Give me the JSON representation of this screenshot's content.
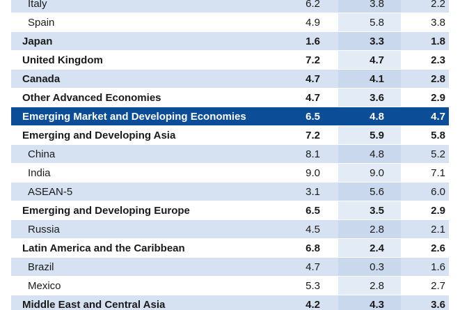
{
  "table": {
    "rows": [
      {
        "label": "Italy",
        "v1": "6.2",
        "v2": "3.8",
        "v3": "2.2",
        "style": "indent"
      },
      {
        "label": "Spain",
        "v1": "4.9",
        "v2": "5.8",
        "v3": "3.8",
        "style": "indent"
      },
      {
        "label": "Japan",
        "v1": "1.6",
        "v2": "3.3",
        "v3": "1.8",
        "style": "normal"
      },
      {
        "label": "United Kingdom",
        "v1": "7.2",
        "v2": "4.7",
        "v3": "2.3",
        "style": "normal"
      },
      {
        "label": "Canada",
        "v1": "4.7",
        "v2": "4.1",
        "v3": "2.8",
        "style": "normal"
      },
      {
        "label": "Other Advanced Economies",
        "v1": "4.7",
        "v2": "3.6",
        "v3": "2.9",
        "style": "normal"
      },
      {
        "label": "Emerging Market and Developing Economies",
        "v1": "6.5",
        "v2": "4.8",
        "v3": "4.7",
        "style": "highlight"
      },
      {
        "label": "Emerging and Developing Asia",
        "v1": "7.2",
        "v2": "5.9",
        "v3": "5.8",
        "style": "normal"
      },
      {
        "label": "China",
        "v1": "8.1",
        "v2": "4.8",
        "v3": "5.2",
        "style": "indent"
      },
      {
        "label": "India",
        "v1": "9.0",
        "v2": "9.0",
        "v3": "7.1",
        "style": "indent"
      },
      {
        "label": "ASEAN-5",
        "v1": "3.1",
        "v2": "5.6",
        "v3": "6.0",
        "style": "indent"
      },
      {
        "label": "Emerging and Developing Europe",
        "v1": "6.5",
        "v2": "3.5",
        "v3": "2.9",
        "style": "normal"
      },
      {
        "label": "Russia",
        "v1": "4.5",
        "v2": "2.8",
        "v3": "2.1",
        "style": "indent"
      },
      {
        "label": "Latin America and the Caribbean",
        "v1": "6.8",
        "v2": "2.4",
        "v3": "2.6",
        "style": "normal"
      },
      {
        "label": "Brazil",
        "v1": "4.7",
        "v2": "0.3",
        "v3": "1.6",
        "style": "indent"
      },
      {
        "label": "Mexico",
        "v1": "5.3",
        "v2": "2.8",
        "v3": "2.7",
        "style": "indent"
      },
      {
        "label": "Middle East and Central Asia",
        "v1": "4.2",
        "v2": "4.3",
        "v3": "3.6",
        "style": "normal"
      }
    ]
  }
}
